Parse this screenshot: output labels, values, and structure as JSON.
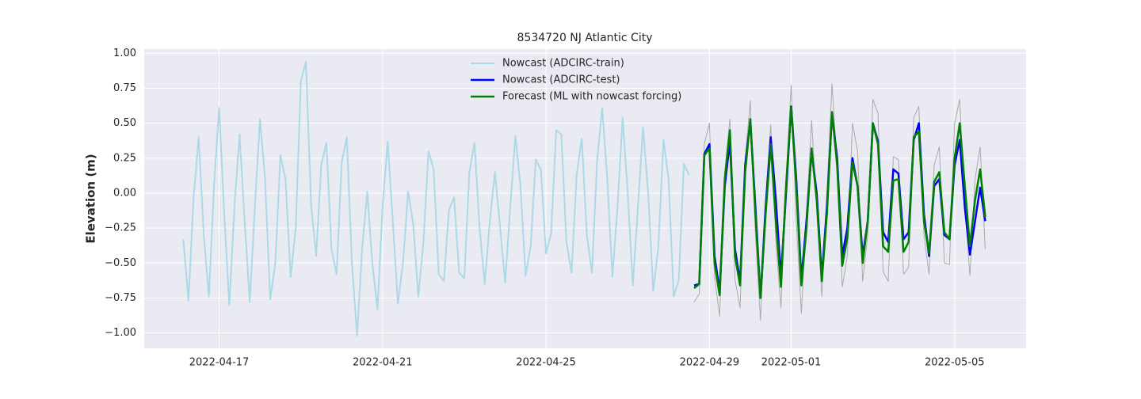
{
  "chart_data": {
    "type": "line",
    "title": "8534720 NJ Atlantic City",
    "ylabel": "Elevation (m)",
    "xlim": [
      "2022-04-15 04:00",
      "2022-05-06 18:00"
    ],
    "xticks": [
      "2022-04-17",
      "2022-04-21",
      "2022-04-25",
      "2022-04-29",
      "2022-05-01",
      "2022-05-05"
    ],
    "ylim": [
      -1.11,
      1.03
    ],
    "yticks": [
      {
        "value": -1,
        "label": "−1.00"
      },
      {
        "value": -0.75,
        "label": "−0.75"
      },
      {
        "value": -0.5,
        "label": "−0.50"
      },
      {
        "value": -0.25,
        "label": "−0.25"
      },
      {
        "value": 0,
        "label": "0.00"
      },
      {
        "value": 0.25,
        "label": "0.25"
      },
      {
        "value": 0.5,
        "label": "0.50"
      },
      {
        "value": 0.75,
        "label": "0.75"
      },
      {
        "value": 1,
        "label": "1.00"
      }
    ],
    "grid": true,
    "background": "#eaeaf2",
    "legend": "upper center",
    "x": [
      "2022-04-16 03:00",
      "2022-04-16 06:00",
      "2022-04-16 09:00",
      "2022-04-16 12:00",
      "2022-04-16 15:00",
      "2022-04-16 18:00",
      "2022-04-16 21:00",
      "2022-04-17 00:00",
      "2022-04-17 03:00",
      "2022-04-17 06:00",
      "2022-04-17 09:00",
      "2022-04-17 12:00",
      "2022-04-17 15:00",
      "2022-04-17 18:00",
      "2022-04-17 21:00",
      "2022-04-18 00:00",
      "2022-04-18 03:00",
      "2022-04-18 06:00",
      "2022-04-18 09:00",
      "2022-04-18 12:00",
      "2022-04-18 15:00",
      "2022-04-18 18:00",
      "2022-04-18 21:00",
      "2022-04-19 00:00",
      "2022-04-19 03:00",
      "2022-04-19 06:00",
      "2022-04-19 09:00",
      "2022-04-19 12:00",
      "2022-04-19 15:00",
      "2022-04-19 18:00",
      "2022-04-19 21:00",
      "2022-04-20 00:00",
      "2022-04-20 03:00",
      "2022-04-20 06:00",
      "2022-04-20 09:00",
      "2022-04-20 12:00",
      "2022-04-20 15:00",
      "2022-04-20 18:00",
      "2022-04-20 21:00",
      "2022-04-21 00:00",
      "2022-04-21 03:00",
      "2022-04-21 06:00",
      "2022-04-21 09:00",
      "2022-04-21 12:00",
      "2022-04-21 15:00",
      "2022-04-21 18:00",
      "2022-04-21 21:00",
      "2022-04-22 00:00",
      "2022-04-22 03:00",
      "2022-04-22 06:00",
      "2022-04-22 09:00",
      "2022-04-22 12:00",
      "2022-04-22 15:00",
      "2022-04-22 18:00",
      "2022-04-22 21:00",
      "2022-04-23 00:00",
      "2022-04-23 03:00",
      "2022-04-23 06:00",
      "2022-04-23 09:00",
      "2022-04-23 12:00",
      "2022-04-23 15:00",
      "2022-04-23 18:00",
      "2022-04-23 21:00",
      "2022-04-24 00:00",
      "2022-04-24 03:00",
      "2022-04-24 06:00",
      "2022-04-24 09:00",
      "2022-04-24 12:00",
      "2022-04-24 15:00",
      "2022-04-24 18:00",
      "2022-04-24 21:00",
      "2022-04-25 00:00",
      "2022-04-25 03:00",
      "2022-04-25 06:00",
      "2022-04-25 09:00",
      "2022-04-25 12:00",
      "2022-04-25 15:00",
      "2022-04-25 18:00",
      "2022-04-25 21:00",
      "2022-04-26 00:00",
      "2022-04-26 03:00",
      "2022-04-26 06:00",
      "2022-04-26 09:00",
      "2022-04-26 12:00",
      "2022-04-26 15:00",
      "2022-04-26 18:00",
      "2022-04-26 21:00",
      "2022-04-27 00:00",
      "2022-04-27 03:00",
      "2022-04-27 06:00",
      "2022-04-27 09:00",
      "2022-04-27 12:00",
      "2022-04-27 15:00",
      "2022-04-27 18:00",
      "2022-04-27 21:00",
      "2022-04-28 00:00",
      "2022-04-28 03:00",
      "2022-04-28 06:00",
      "2022-04-28 09:00",
      "2022-04-28 12:00",
      "2022-04-28 15:00",
      "2022-04-28 18:00",
      "2022-04-28 21:00",
      "2022-04-29 00:00",
      "2022-04-29 03:00",
      "2022-04-29 06:00",
      "2022-04-29 09:00",
      "2022-04-29 12:00",
      "2022-04-29 15:00",
      "2022-04-29 18:00",
      "2022-04-29 21:00",
      "2022-04-30 00:00",
      "2022-04-30 03:00",
      "2022-04-30 06:00",
      "2022-04-30 09:00",
      "2022-04-30 12:00",
      "2022-04-30 15:00",
      "2022-04-30 18:00",
      "2022-04-30 21:00",
      "2022-05-01 00:00",
      "2022-05-01 03:00",
      "2022-05-01 06:00",
      "2022-05-01 09:00",
      "2022-05-01 12:00",
      "2022-05-01 15:00",
      "2022-05-01 18:00",
      "2022-05-01 21:00",
      "2022-05-02 00:00",
      "2022-05-02 03:00",
      "2022-05-02 06:00",
      "2022-05-02 09:00",
      "2022-05-02 12:00",
      "2022-05-02 15:00",
      "2022-05-02 18:00",
      "2022-05-02 21:00",
      "2022-05-03 00:00",
      "2022-05-03 03:00",
      "2022-05-03 06:00",
      "2022-05-03 09:00",
      "2022-05-03 12:00",
      "2022-05-03 15:00",
      "2022-05-03 18:00",
      "2022-05-03 21:00",
      "2022-05-04 00:00",
      "2022-05-04 03:00",
      "2022-05-04 06:00",
      "2022-05-04 09:00",
      "2022-05-04 12:00",
      "2022-05-04 15:00",
      "2022-05-04 18:00",
      "2022-05-04 21:00",
      "2022-05-05 00:00",
      "2022-05-05 03:00",
      "2022-05-05 06:00",
      "2022-05-05 09:00",
      "2022-05-05 12:00",
      "2022-05-05 15:00",
      "2022-05-05 18:00"
    ],
    "series": [
      {
        "color": "#aaaaaa",
        "linewidth": 1,
        "values": [
          null,
          null,
          null,
          null,
          null,
          null,
          null,
          null,
          null,
          null,
          null,
          null,
          null,
          null,
          null,
          null,
          null,
          null,
          null,
          null,
          null,
          null,
          null,
          null,
          null,
          null,
          null,
          null,
          null,
          null,
          null,
          null,
          null,
          null,
          null,
          null,
          null,
          null,
          null,
          null,
          null,
          null,
          null,
          null,
          null,
          null,
          null,
          null,
          null,
          null,
          null,
          null,
          null,
          null,
          null,
          null,
          null,
          null,
          null,
          null,
          null,
          null,
          null,
          null,
          null,
          null,
          null,
          null,
          null,
          null,
          null,
          null,
          null,
          null,
          null,
          null,
          null,
          null,
          null,
          null,
          null,
          null,
          null,
          null,
          null,
          null,
          null,
          null,
          null,
          null,
          null,
          null,
          null,
          null,
          null,
          null,
          null,
          null,
          null,
          null,
          -0.78,
          -0.72,
          0.35,
          0.5,
          -0.6,
          -0.88,
          0.15,
          0.53,
          -0.62,
          -0.82,
          0.25,
          0.66,
          -0.3,
          -0.91,
          -0.05,
          0.49,
          -0.35,
          -0.82,
          0.1,
          0.77,
          -0.2,
          -0.86,
          -0.15,
          0.52,
          -0.1,
          -0.74,
          0,
          0.78,
          0.2,
          -0.67,
          -0.45,
          0.5,
          0.3,
          -0.63,
          -0.3,
          0.67,
          0.57,
          -0.56,
          -0.63,
          0.26,
          0.24,
          -0.58,
          -0.53,
          0.54,
          0.62,
          -0.3,
          -0.58,
          0.2,
          0.33,
          -0.5,
          -0.51,
          0.5,
          0.67,
          -0.1,
          -0.59,
          0.1,
          0.33,
          -0.4
        ]
      },
      {
        "name": "Nowcast (ADCIRC-train)",
        "color": "#add8e6",
        "linewidth": 2,
        "values": [
          -0.33,
          -0.77,
          -0.03,
          0.4,
          -0.3,
          -0.74,
          0.05,
          0.61,
          -0.15,
          -0.8,
          -0.1,
          0.42,
          -0.2,
          -0.78,
          -0.1,
          0.53,
          0.1,
          -0.76,
          -0.5,
          0.27,
          0.1,
          -0.6,
          -0.25,
          0.8,
          0.94,
          -0.08,
          -0.45,
          0.2,
          0.36,
          -0.4,
          -0.58,
          0.22,
          0.4,
          -0.5,
          -1.02,
          -0.4,
          0.01,
          -0.5,
          -0.83,
          -0.1,
          0.37,
          -0.2,
          -0.79,
          -0.5,
          0.01,
          -0.22,
          -0.74,
          -0.35,
          0.3,
          0.17,
          -0.58,
          -0.63,
          -0.12,
          -0.03,
          -0.57,
          -0.61,
          0.15,
          0.36,
          -0.25,
          -0.65,
          -0.2,
          0.15,
          -0.24,
          -0.64,
          -0.1,
          0.41,
          0.05,
          -0.59,
          -0.38,
          0.24,
          0.17,
          -0.43,
          -0.29,
          0.45,
          0.42,
          -0.35,
          -0.57,
          0.13,
          0.39,
          -0.3,
          -0.57,
          0.23,
          0.61,
          0.1,
          -0.6,
          -0.1,
          0.54,
          0,
          -0.66,
          -0.1,
          0.47,
          0,
          -0.7,
          -0.38,
          0.38,
          0.1,
          -0.74,
          -0.62,
          0.21,
          0.13,
          null,
          null,
          null,
          null,
          null,
          null,
          null,
          null,
          null,
          null,
          null,
          null,
          null,
          null,
          null,
          null,
          null,
          null,
          null,
          null,
          null,
          null,
          null,
          null,
          null,
          null,
          null,
          null,
          null,
          null,
          null,
          null,
          null,
          null,
          null,
          null,
          null,
          null,
          null,
          null,
          null,
          null,
          null,
          null,
          null,
          null,
          null,
          null,
          null,
          null,
          null,
          null,
          null,
          null,
          null,
          null,
          null,
          null
        ]
      },
      {
        "name": "Nowcast (ADCIRC-test)",
        "color": "#0000ff",
        "linewidth": 2.5,
        "values": [
          null,
          null,
          null,
          null,
          null,
          null,
          null,
          null,
          null,
          null,
          null,
          null,
          null,
          null,
          null,
          null,
          null,
          null,
          null,
          null,
          null,
          null,
          null,
          null,
          null,
          null,
          null,
          null,
          null,
          null,
          null,
          null,
          null,
          null,
          null,
          null,
          null,
          null,
          null,
          null,
          null,
          null,
          null,
          null,
          null,
          null,
          null,
          null,
          null,
          null,
          null,
          null,
          null,
          null,
          null,
          null,
          null,
          null,
          null,
          null,
          null,
          null,
          null,
          null,
          null,
          null,
          null,
          null,
          null,
          null,
          null,
          null,
          null,
          null,
          null,
          null,
          null,
          null,
          null,
          null,
          null,
          null,
          null,
          null,
          null,
          null,
          null,
          null,
          null,
          null,
          null,
          null,
          null,
          null,
          null,
          null,
          null,
          null,
          null,
          null,
          -0.66,
          -0.65,
          0.28,
          0.35,
          -0.45,
          -0.7,
          0.05,
          0.37,
          -0.4,
          -0.63,
          0.2,
          0.52,
          -0.1,
          -0.75,
          -0.1,
          0.4,
          -0.05,
          -0.6,
          0,
          0.62,
          0.1,
          -0.62,
          -0.2,
          0.3,
          0,
          -0.6,
          -0.1,
          0.57,
          0.25,
          -0.45,
          -0.25,
          0.25,
          0.05,
          -0.45,
          -0.2,
          0.5,
          0.37,
          -0.28,
          -0.35,
          0.17,
          0.14,
          -0.33,
          -0.28,
          0.38,
          0.5,
          -0.15,
          -0.45,
          0.05,
          0.1,
          -0.3,
          -0.33,
          0.2,
          0.38,
          -0.1,
          -0.44,
          -0.2,
          0.04,
          -0.2
        ]
      },
      {
        "name": "Forecast (ML with nowcast forcing)",
        "color": "#008000",
        "linewidth": 2.5,
        "values": [
          null,
          null,
          null,
          null,
          null,
          null,
          null,
          null,
          null,
          null,
          null,
          null,
          null,
          null,
          null,
          null,
          null,
          null,
          null,
          null,
          null,
          null,
          null,
          null,
          null,
          null,
          null,
          null,
          null,
          null,
          null,
          null,
          null,
          null,
          null,
          null,
          null,
          null,
          null,
          null,
          null,
          null,
          null,
          null,
          null,
          null,
          null,
          null,
          null,
          null,
          null,
          null,
          null,
          null,
          null,
          null,
          null,
          null,
          null,
          null,
          null,
          null,
          null,
          null,
          null,
          null,
          null,
          null,
          null,
          null,
          null,
          null,
          null,
          null,
          null,
          null,
          null,
          null,
          null,
          null,
          null,
          null,
          null,
          null,
          null,
          null,
          null,
          null,
          null,
          null,
          null,
          null,
          null,
          null,
          null,
          null,
          null,
          null,
          null,
          null,
          -0.68,
          -0.65,
          0.27,
          0.32,
          -0.5,
          -0.73,
          0.1,
          0.45,
          -0.45,
          -0.66,
          0.15,
          0.53,
          -0.15,
          -0.75,
          -0.15,
          0.35,
          -0.2,
          -0.67,
          0.05,
          0.62,
          0.05,
          -0.66,
          -0.25,
          0.32,
          -0.05,
          -0.63,
          -0.15,
          0.58,
          0.2,
          -0.52,
          -0.32,
          0.22,
          0.05,
          -0.5,
          -0.2,
          0.5,
          0.35,
          -0.38,
          -0.42,
          0.09,
          0.1,
          -0.42,
          -0.35,
          0.4,
          0.44,
          -0.2,
          -0.43,
          0.08,
          0.15,
          -0.28,
          -0.33,
          0.25,
          0.5,
          0.05,
          -0.38,
          -0.05,
          0.17,
          -0.17
        ]
      }
    ]
  }
}
